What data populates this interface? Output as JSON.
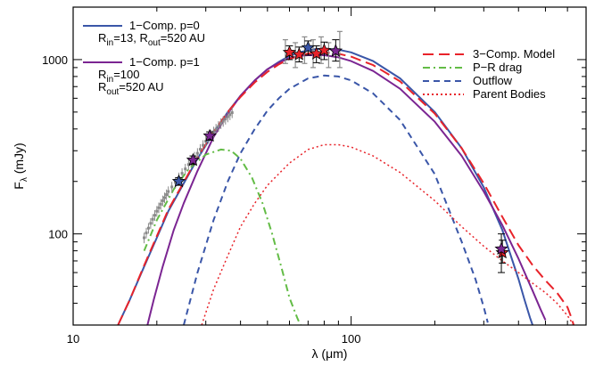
{
  "chart_data": {
    "type": "line",
    "xlabel": "λ (μm)",
    "ylabel": "F",
    "ylabel_sub": "λ",
    "ylabel_unit": " (mJy)",
    "x_scale": "log",
    "y_scale": "log",
    "xlim": [
      10,
      700
    ],
    "ylim": [
      30,
      2000
    ],
    "x_ticks": [
      {
        "value": 10,
        "label": "10"
      },
      {
        "value": 100,
        "label": "100"
      }
    ],
    "y_ticks": [
      {
        "value": 100,
        "label": "100"
      },
      {
        "value": 1000,
        "label": "1000"
      }
    ],
    "legend_left": [
      {
        "key": "p0",
        "lines": [
          [
            {
              "t": "1−Comp. p=0"
            }
          ],
          [
            {
              "t": "R"
            },
            {
              "t": "in",
              "sub": true
            },
            {
              "t": "=13, R"
            },
            {
              "t": "out",
              "sub": true
            },
            {
              "t": "=520 AU"
            }
          ]
        ],
        "color": "#3a56a8",
        "dash": "solid"
      },
      {
        "key": "p1",
        "lines": [
          [
            {
              "t": "1−Comp. p=1"
            }
          ],
          [
            {
              "t": "R"
            },
            {
              "t": "in",
              "sub": true
            },
            {
              "t": "=100"
            }
          ],
          [
            {
              "t": "R"
            },
            {
              "t": "out",
              "sub": true
            },
            {
              "t": "=520 AU"
            }
          ]
        ],
        "color": "#7b2592",
        "dash": "solid"
      }
    ],
    "legend_right": [
      {
        "key": "three",
        "label": "3−Comp. Model",
        "color": "#e8232a",
        "dash": "long-dash"
      },
      {
        "key": "pr",
        "label": "P−R drag",
        "color": "#63bc46",
        "dash": "dash-dot"
      },
      {
        "key": "outflow",
        "label": "Outflow",
        "color": "#3a56a8",
        "dash": "dash"
      },
      {
        "key": "parent",
        "label": "Parent Bodies",
        "color": "#e8232a",
        "dash": "dot"
      }
    ],
    "series": [
      {
        "key": "p0",
        "color": "#3a56a8",
        "dash": "solid",
        "width": 2,
        "x": [
          14.5,
          16,
          18,
          20,
          22,
          25,
          28,
          32,
          36,
          40,
          45,
          50,
          55,
          60,
          65,
          70,
          75,
          80,
          90,
          100,
          120,
          150,
          200,
          250,
          300,
          350,
          400,
          420,
          440,
          460
        ],
        "y": [
          30,
          42,
          65,
          95,
          135,
          195,
          270,
          380,
          500,
          620,
          760,
          880,
          970,
          1050,
          1100,
          1130,
          1150,
          1155,
          1140,
          1100,
          980,
          780,
          500,
          310,
          185,
          105,
          55,
          42,
          33,
          27
        ]
      },
      {
        "key": "p1",
        "color": "#7b2592",
        "dash": "solid",
        "width": 2,
        "x": [
          18.5,
          19.5,
          21,
          23,
          25,
          28,
          32,
          36,
          40,
          45,
          50,
          55,
          60,
          65,
          70,
          80,
          90,
          100,
          120,
          150,
          200,
          250,
          300,
          350,
          400,
          450,
          480,
          500
        ],
        "y": [
          30,
          42,
          65,
          105,
          150,
          230,
          360,
          490,
          620,
          760,
          880,
          960,
          1020,
          1050,
          1060,
          1060,
          1030,
          980,
          860,
          680,
          440,
          280,
          175,
          112,
          72,
          47,
          37,
          32
        ]
      },
      {
        "key": "three",
        "color": "#e8232a",
        "dash": "long-dash",
        "width": 2,
        "x": [
          14.5,
          16,
          18,
          20,
          22,
          25,
          28,
          32,
          36,
          40,
          45,
          50,
          55,
          60,
          70,
          80,
          90,
          100,
          120,
          150,
          200,
          250,
          300,
          350,
          400,
          450,
          500,
          550,
          600,
          620,
          640
        ],
        "y": [
          30,
          42,
          66,
          97,
          138,
          198,
          275,
          385,
          500,
          610,
          740,
          850,
          940,
          1010,
          1085,
          1100,
          1080,
          1040,
          930,
          750,
          490,
          310,
          195,
          125,
          86,
          66,
          54,
          46,
          38,
          33,
          28
        ]
      },
      {
        "key": "pr",
        "color": "#63bc46",
        "dash": "dash-dot",
        "width": 2,
        "x": [
          18,
          20,
          23,
          26,
          30,
          34,
          37,
          40,
          44,
          48,
          52,
          56,
          60,
          64,
          67
        ],
        "y": [
          80,
          120,
          180,
          235,
          285,
          305,
          300,
          270,
          210,
          150,
          100,
          65,
          43,
          33,
          28
        ]
      },
      {
        "key": "outflow",
        "color": "#3a56a8",
        "dash": "dash",
        "width": 2,
        "x": [
          25,
          28,
          32,
          36,
          40,
          45,
          50,
          55,
          60,
          70,
          80,
          90,
          100,
          120,
          150,
          200,
          250,
          280,
          300,
          310
        ],
        "y": [
          30,
          60,
          120,
          200,
          290,
          400,
          510,
          600,
          680,
          780,
          810,
          800,
          760,
          640,
          450,
          220,
          90,
          55,
          38,
          31
        ]
      },
      {
        "key": "parent",
        "color": "#e8232a",
        "dash": "dot",
        "width": 1.5,
        "x": [
          29,
          32,
          36,
          40,
          45,
          50,
          60,
          70,
          80,
          90,
          100,
          120,
          150,
          200,
          250,
          300,
          350,
          400,
          450,
          500,
          550,
          600,
          640
        ],
        "y": [
          30,
          48,
          75,
          110,
          150,
          190,
          255,
          305,
          325,
          325,
          315,
          280,
          225,
          155,
          110,
          85,
          70,
          60,
          52,
          46,
          40,
          34,
          29
        ]
      }
    ],
    "spectrum": {
      "color": "#8a8a8a",
      "x": [
        18,
        19,
        20,
        21,
        22,
        24,
        26,
        28,
        30,
        32,
        34,
        36,
        38
      ],
      "y": [
        95,
        115,
        135,
        155,
        175,
        210,
        250,
        290,
        340,
        385,
        430,
        470,
        510
      ],
      "err": 0.07
    },
    "photometry": [
      {
        "x": 24,
        "y": 200,
        "ylo": 190,
        "yhi": 210,
        "color": "#3a56a8"
      },
      {
        "x": 27,
        "y": 265,
        "ylo": 250,
        "yhi": 280,
        "color": "#7b2592"
      },
      {
        "x": 31,
        "y": 365,
        "ylo": 345,
        "yhi": 385,
        "color": "#7b2592"
      },
      {
        "x": 60,
        "y": 1100,
        "ylo": 1000,
        "yhi": 1200,
        "color": "#e8232a"
      },
      {
        "x": 65,
        "y": 1070,
        "ylo": 970,
        "yhi": 1180,
        "color": "#e8232a"
      },
      {
        "x": 70,
        "y": 1170,
        "ylo": 1060,
        "yhi": 1280,
        "color": "#3a56a8"
      },
      {
        "x": 75,
        "y": 1080,
        "ylo": 960,
        "yhi": 1200,
        "color": "#e8232a"
      },
      {
        "x": 80,
        "y": 1130,
        "ylo": 1000,
        "yhi": 1260,
        "color": "#e8232a"
      },
      {
        "x": 88,
        "y": 1120,
        "ylo": 980,
        "yhi": 1300,
        "color": "#7b2592"
      },
      {
        "x": 350,
        "y": 78,
        "ylo": 68,
        "yhi": 92,
        "color": "#e8232a"
      },
      {
        "x": 347,
        "y": 82,
        "ylo": 60,
        "yhi": 100,
        "color": "#7b2592"
      }
    ],
    "grey_errbars": [
      {
        "x": 58,
        "ylo": 950,
        "yhi": 1300
      },
      {
        "x": 63,
        "ylo": 900,
        "yhi": 1250
      },
      {
        "x": 68,
        "ylo": 950,
        "yhi": 1350
      },
      {
        "x": 73,
        "ylo": 900,
        "yhi": 1300
      },
      {
        "x": 78,
        "ylo": 950,
        "yhi": 1350
      },
      {
        "x": 83,
        "ylo": 900,
        "yhi": 1250
      },
      {
        "x": 91,
        "ylo": 900,
        "yhi": 1450
      }
    ]
  }
}
